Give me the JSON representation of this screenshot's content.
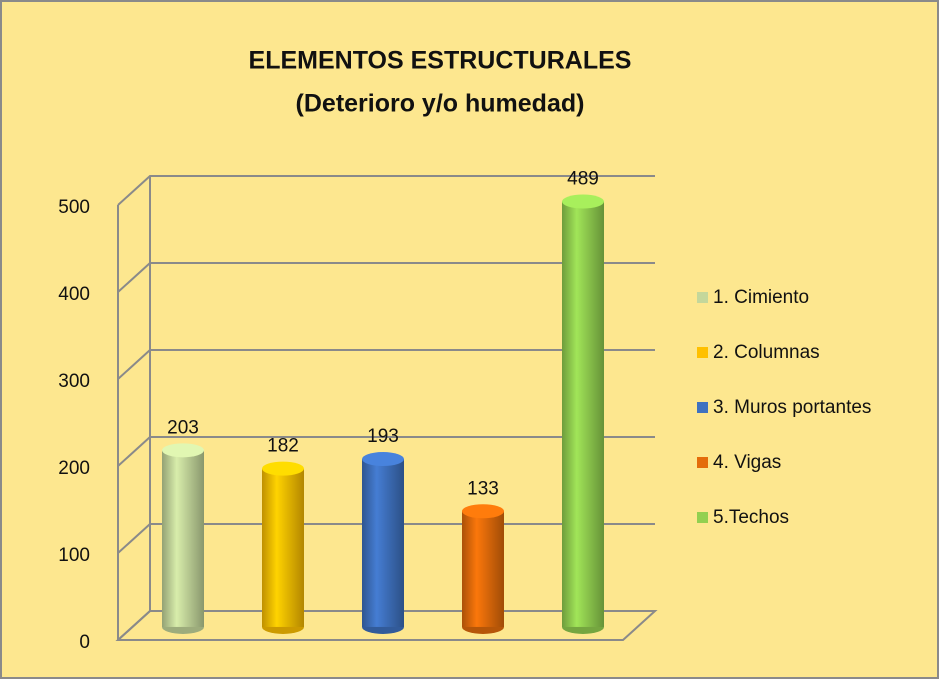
{
  "chart_data": {
    "type": "bar3d",
    "title": "ELEMENTOS ESTRUCTURALES",
    "subtitle": "(Deterioro y/o humedad)",
    "categories": [
      "1. Cimiento",
      "2. Columnas",
      "3. Muros portantes",
      "4. Vigas",
      "5.Techos"
    ],
    "values": [
      203,
      182,
      193,
      133,
      489
    ],
    "colors": [
      "#c4d79b",
      "#ffc000",
      "#3f72c0",
      "#e46c0a",
      "#92d050"
    ],
    "ylim": [
      0,
      500
    ],
    "yticks": [
      0,
      100,
      200,
      300,
      400,
      500
    ],
    "grid": true,
    "legend": "right"
  }
}
